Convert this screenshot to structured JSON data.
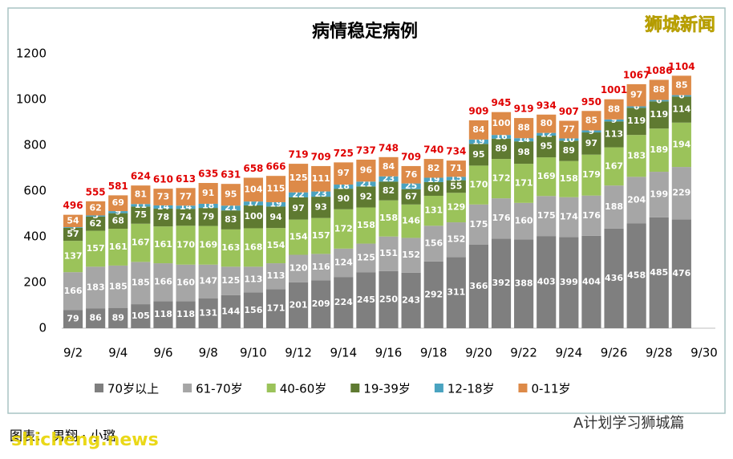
{
  "chart_data": {
    "type": "bar",
    "stacked": true,
    "title": "病情稳定病例",
    "categories": [
      "9/2",
      null,
      "9/4",
      null,
      "9/6",
      null,
      "9/8",
      null,
      "9/10",
      null,
      "9/12",
      null,
      "9/14",
      null,
      "9/16",
      null,
      "9/18",
      null,
      "9/20",
      null,
      "9/22",
      null,
      "9/24",
      null,
      "9/26",
      null,
      "9/28",
      null,
      "9/30"
    ],
    "ylim": [
      0,
      1200
    ],
    "yticks": [
      0,
      200,
      400,
      600,
      800,
      1000,
      1200
    ],
    "grid": false,
    "legend": "bottom",
    "series": [
      {
        "name": "70岁以上",
        "color": "#7f7f7f",
        "values": [
          79,
          86,
          89,
          105,
          118,
          118,
          131,
          144,
          156,
          171,
          201,
          209,
          224,
          245,
          250,
          243,
          292,
          311,
          366,
          392,
          388,
          403,
          399,
          404,
          436,
          458,
          485,
          476,
          null
        ]
      },
      {
        "name": "61-70岁",
        "color": "#a6a6a6",
        "values": [
          166,
          183,
          185,
          185,
          166,
          160,
          147,
          125,
          113,
          113,
          120,
          116,
          124,
          125,
          151,
          152,
          156,
          152,
          175,
          176,
          160,
          175,
          174,
          176,
          188,
          204,
          199,
          229,
          null
        ]
      },
      {
        "name": "40-60岁",
        "color": "#9bc35a",
        "values": [
          137,
          157,
          161,
          167,
          161,
          170,
          169,
          163,
          168,
          154,
          154,
          157,
          172,
          158,
          158,
          146,
          131,
          129,
          170,
          172,
          171,
          169,
          158,
          179,
          167,
          183,
          189,
          194,
          null
        ]
      },
      {
        "name": "19-39岁",
        "color": "#5f7a31",
        "values": [
          57,
          62,
          68,
          75,
          78,
          74,
          79,
          83,
          100,
          94,
          97,
          93,
          90,
          92,
          82,
          67,
          60,
          55,
          95,
          89,
          98,
          95,
          89,
          97,
          113,
          119,
          119,
          114,
          null
        ]
      },
      {
        "name": "12-18岁",
        "color": "#4aa3c0",
        "values": [
          3,
          5,
          9,
          11,
          14,
          14,
          18,
          21,
          17,
          19,
          22,
          23,
          18,
          21,
          23,
          25,
          19,
          15,
          19,
          16,
          14,
          12,
          10,
          9,
          9,
          6,
          6,
          6,
          null
        ]
      },
      {
        "name": "0-11岁",
        "color": "#dd8a48",
        "values": [
          54,
          62,
          69,
          81,
          73,
          77,
          91,
          95,
          104,
          115,
          125,
          111,
          97,
          96,
          84,
          76,
          82,
          71,
          84,
          100,
          88,
          80,
          77,
          85,
          88,
          97,
          88,
          85,
          null
        ]
      }
    ],
    "totals": [
      496,
      555,
      581,
      624,
      610,
      613,
      635,
      631,
      658,
      666,
      719,
      709,
      725,
      737,
      748,
      709,
      740,
      734,
      909,
      945,
      919,
      934,
      907,
      950,
      1001,
      1067,
      1086,
      1104,
      null
    ],
    "total_color": "#e00000"
  },
  "watermark": "狮城新闻",
  "credit": "图表：  男翔 · 小璐",
  "site": "shicheng.news",
  "account": "A计划学习狮城篇"
}
